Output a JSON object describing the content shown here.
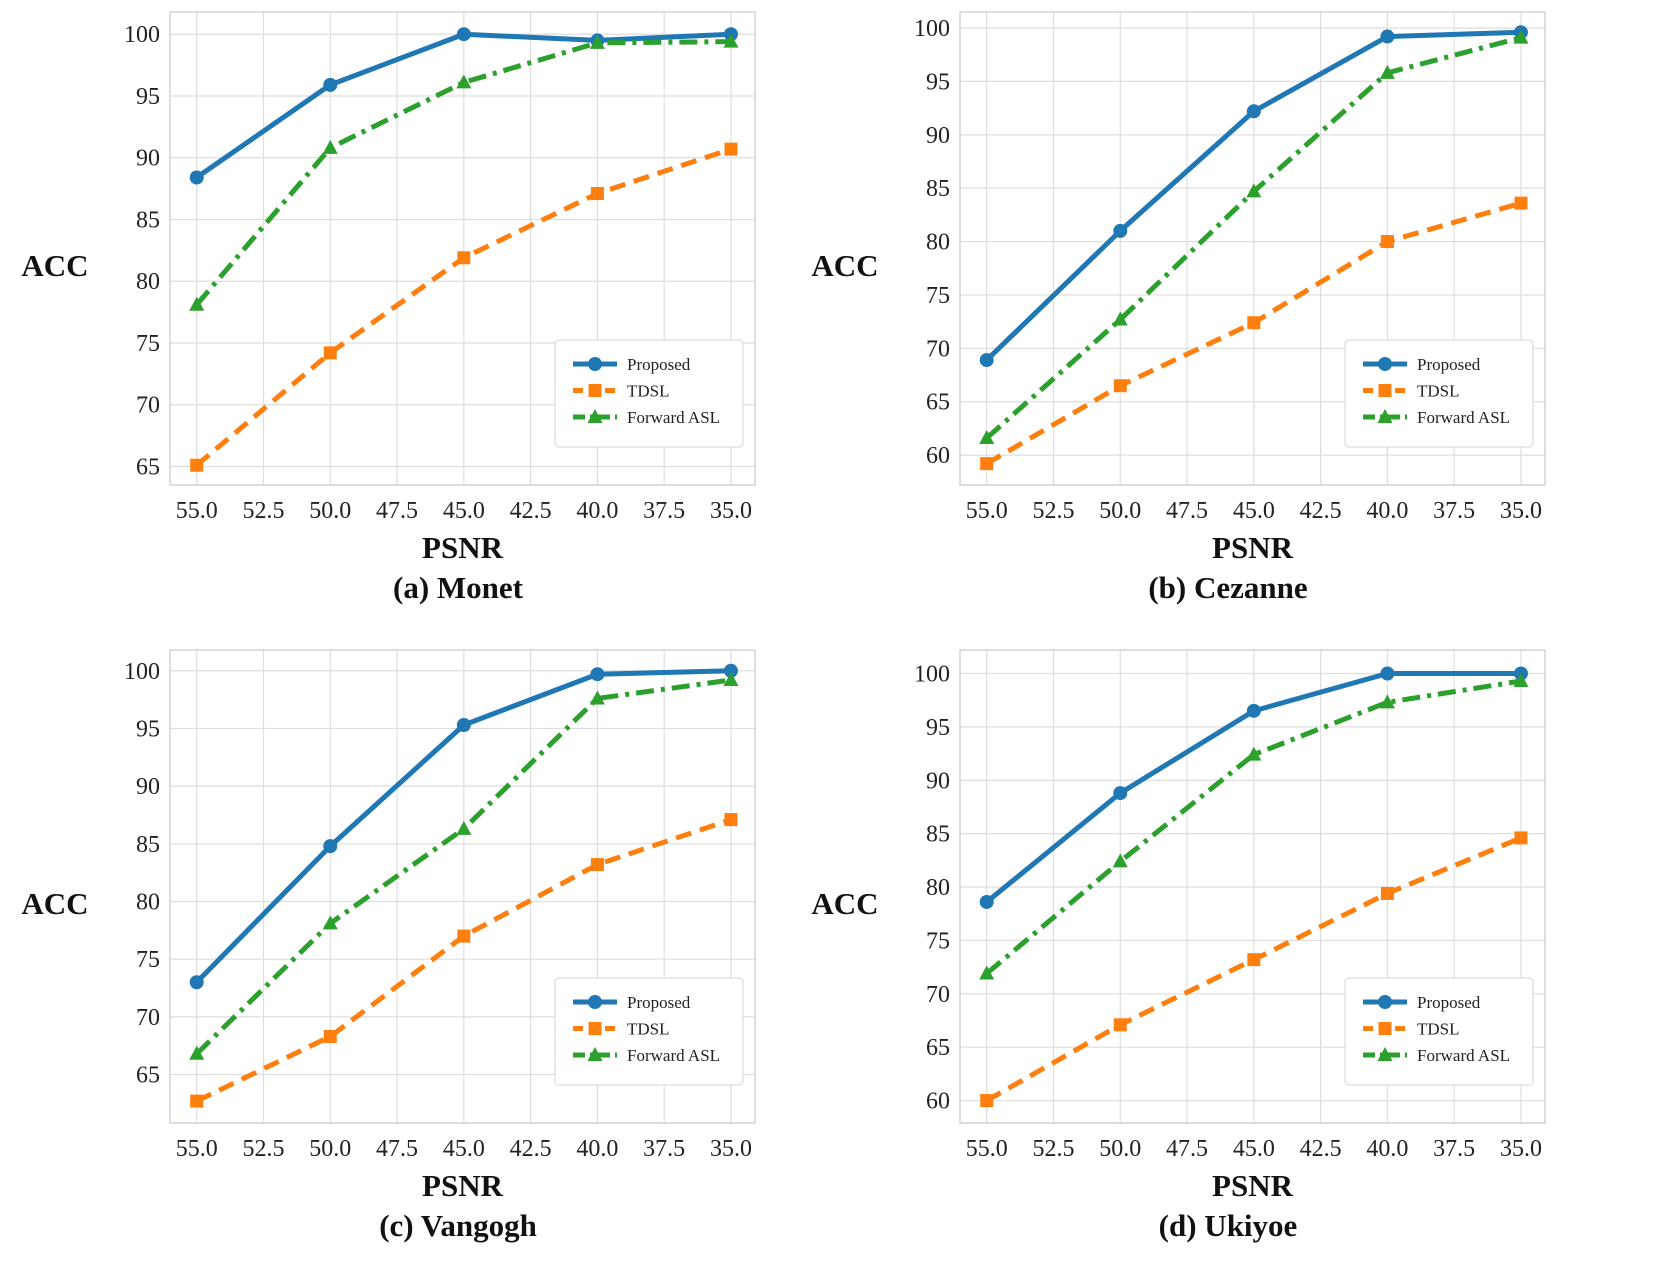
{
  "chart_data": [
    {
      "type": "line",
      "caption": "(a) Monet",
      "xlabel": "PSNR",
      "ylabel": "ACC",
      "x": [
        55.0,
        50.0,
        45.0,
        40.0,
        35.0
      ],
      "xlim": [
        56.0,
        34.1
      ],
      "xticks": [
        "55.0",
        "52.5",
        "50.0",
        "47.5",
        "45.0",
        "42.5",
        "40.0",
        "37.5",
        "35.0"
      ],
      "ylim": [
        63.5,
        101.8
      ],
      "yticks": [
        "65",
        "70",
        "75",
        "80",
        "85",
        "90",
        "95",
        "100"
      ],
      "grid": true,
      "legend_position": "lower-right",
      "series": [
        {
          "name": "Proposed",
          "values": [
            88.4,
            95.9,
            100.0,
            99.5,
            100.0
          ]
        },
        {
          "name": "TDSL",
          "values": [
            65.1,
            74.2,
            81.9,
            87.1,
            90.7
          ]
        },
        {
          "name": "Forward ASL",
          "values": [
            78.1,
            90.8,
            96.1,
            99.3,
            99.4
          ]
        }
      ]
    },
    {
      "type": "line",
      "caption": "(b) Cezanne",
      "xlabel": "PSNR",
      "ylabel": "ACC",
      "x": [
        55.0,
        50.0,
        45.0,
        40.0,
        35.0
      ],
      "xlim": [
        56.0,
        34.1
      ],
      "xticks": [
        "55.0",
        "52.5",
        "50.0",
        "47.5",
        "45.0",
        "42.5",
        "40.0",
        "37.5",
        "35.0"
      ],
      "ylim": [
        57.2,
        101.5
      ],
      "yticks": [
        "60",
        "65",
        "70",
        "75",
        "80",
        "85",
        "90",
        "95",
        "100"
      ],
      "grid": true,
      "legend_position": "lower-right",
      "series": [
        {
          "name": "Proposed",
          "values": [
            68.9,
            81.0,
            92.2,
            99.2,
            99.6
          ]
        },
        {
          "name": "TDSL",
          "values": [
            59.2,
            66.5,
            72.4,
            80.0,
            83.6
          ]
        },
        {
          "name": "Forward ASL",
          "values": [
            61.6,
            72.7,
            84.7,
            95.8,
            99.1
          ]
        }
      ]
    },
    {
      "type": "line",
      "caption": "(c) Vangogh",
      "xlabel": "PSNR",
      "ylabel": "ACC",
      "x": [
        55.0,
        50.0,
        45.0,
        40.0,
        35.0
      ],
      "xlim": [
        56.0,
        34.1
      ],
      "xticks": [
        "55.0",
        "52.5",
        "50.0",
        "47.5",
        "45.0",
        "42.5",
        "40.0",
        "37.5",
        "35.0"
      ],
      "ylim": [
        60.8,
        101.8
      ],
      "yticks": [
        "65",
        "70",
        "75",
        "80",
        "85",
        "90",
        "95",
        "100"
      ],
      "grid": true,
      "legend_position": "lower-right",
      "series": [
        {
          "name": "Proposed",
          "values": [
            73.0,
            84.8,
            95.3,
            99.7,
            100.0
          ]
        },
        {
          "name": "TDSL",
          "values": [
            62.7,
            68.3,
            77.0,
            83.2,
            87.1
          ]
        },
        {
          "name": "Forward ASL",
          "values": [
            66.8,
            78.1,
            86.3,
            97.6,
            99.2
          ]
        }
      ]
    },
    {
      "type": "line",
      "caption": "(d) Ukiyoe",
      "xlabel": "PSNR",
      "ylabel": "ACC",
      "x": [
        55.0,
        50.0,
        45.0,
        40.0,
        35.0
      ],
      "xlim": [
        56.0,
        34.1
      ],
      "xticks": [
        "55.0",
        "52.5",
        "50.0",
        "47.5",
        "45.0",
        "42.5",
        "40.0",
        "37.5",
        "35.0"
      ],
      "ylim": [
        57.9,
        102.2
      ],
      "yticks": [
        "60",
        "65",
        "70",
        "75",
        "80",
        "85",
        "90",
        "95",
        "100"
      ],
      "grid": true,
      "legend_position": "lower-right",
      "series": [
        {
          "name": "Proposed",
          "values": [
            78.6,
            88.8,
            96.5,
            100.0,
            100.0
          ]
        },
        {
          "name": "TDSL",
          "values": [
            60.0,
            67.1,
            73.2,
            79.4,
            84.6
          ]
        },
        {
          "name": "Forward ASL",
          "values": [
            71.9,
            82.4,
            92.4,
            97.3,
            99.3
          ]
        }
      ]
    }
  ],
  "series_styles": [
    {
      "name": "Proposed",
      "color": "#1f77b4",
      "marker": "circle",
      "dash": "solid"
    },
    {
      "name": "TDSL",
      "color": "#ff7f0e",
      "marker": "square",
      "dash": "dashed"
    },
    {
      "name": "Forward ASL",
      "color": "#2ca02c",
      "marker": "triangle",
      "dash": "dashdot"
    }
  ]
}
